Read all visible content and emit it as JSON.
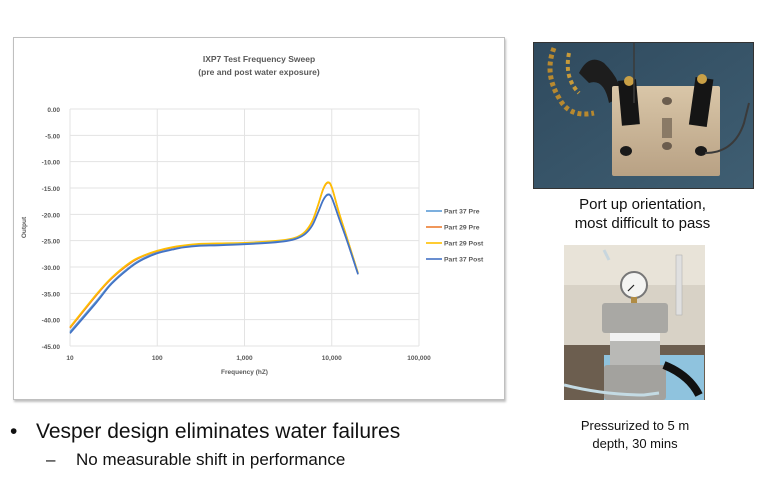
{
  "chart_data": {
    "type": "line",
    "title": "IXP7 Test Frequency Sweep",
    "subtitle": "(pre and post water exposure)",
    "xlabel": "Frequency (hZ)",
    "ylabel": "Output",
    "xscale": "log",
    "xlim": [
      10,
      100000
    ],
    "ylim": [
      -45,
      0
    ],
    "x_ticks": [
      "10",
      "100",
      "1,000",
      "10,000",
      "100,000"
    ],
    "y_ticks": [
      "0.00",
      "-5.00",
      "-10.00",
      "-15.00",
      "-20.00",
      "-25.00",
      "-30.00",
      "-35.00",
      "-40.00",
      "-45.00"
    ],
    "grid": true,
    "legend_position": "right",
    "x": [
      10,
      20,
      30,
      50,
      70,
      100,
      150,
      200,
      300,
      500,
      1000,
      2000,
      3000,
      4000,
      5000,
      6000,
      7000,
      8000,
      9000,
      10000,
      12000,
      15000,
      20000
    ],
    "series": [
      {
        "name": "Part 37 Pre",
        "color": "#5B9BD5",
        "values": [
          -42.3,
          -36.5,
          -33.0,
          -29.8,
          -28.3,
          -27.3,
          -26.6,
          -26.2,
          -25.9,
          -25.8,
          -25.6,
          -25.3,
          -25.0,
          -24.5,
          -23.6,
          -22.0,
          -19.5,
          -17.2,
          -16.2,
          -16.8,
          -20.5,
          -25.0,
          -31.3
        ]
      },
      {
        "name": "Part 29 Pre",
        "color": "#ED7D31",
        "values": [
          -41.6,
          -35.4,
          -32.2,
          -29.2,
          -27.9,
          -27.0,
          -26.3,
          -26.0,
          -25.7,
          -25.6,
          -25.5,
          -25.2,
          -24.9,
          -24.4,
          -23.3,
          -21.3,
          -18.2,
          -15.2,
          -14.0,
          -14.9,
          -19.5,
          -24.6,
          -31.2
        ]
      },
      {
        "name": "Part 29 Post",
        "color": "#FFC000",
        "values": [
          -41.4,
          -35.2,
          -32.0,
          -29.0,
          -27.8,
          -26.9,
          -26.2,
          -25.9,
          -25.6,
          -25.5,
          -25.4,
          -25.1,
          -24.8,
          -24.3,
          -23.2,
          -21.2,
          -18.1,
          -15.1,
          -13.9,
          -14.8,
          -19.4,
          -24.5,
          -31.1
        ]
      },
      {
        "name": "Part 37 Post",
        "color": "#4472C4",
        "values": [
          -42.6,
          -36.8,
          -33.2,
          -30.0,
          -28.5,
          -27.4,
          -26.7,
          -26.3,
          -26.0,
          -25.9,
          -25.7,
          -25.4,
          -25.1,
          -24.6,
          -23.7,
          -22.1,
          -19.6,
          -17.3,
          -16.3,
          -16.9,
          -20.6,
          -25.1,
          -31.4
        ]
      }
    ]
  },
  "slide": {
    "bullet_main": "Vesper design eliminates water failures",
    "bullet_sub": "No measurable shift in performance",
    "bullet_glyph": "•",
    "sub_glyph": "–",
    "photo1_caption_line1": "Port up orientation,",
    "photo1_caption_line2": "most difficult to pass",
    "photo2_caption_line1": "Pressurized to 5 m",
    "photo2_caption_line2": "depth, 30 mins"
  }
}
